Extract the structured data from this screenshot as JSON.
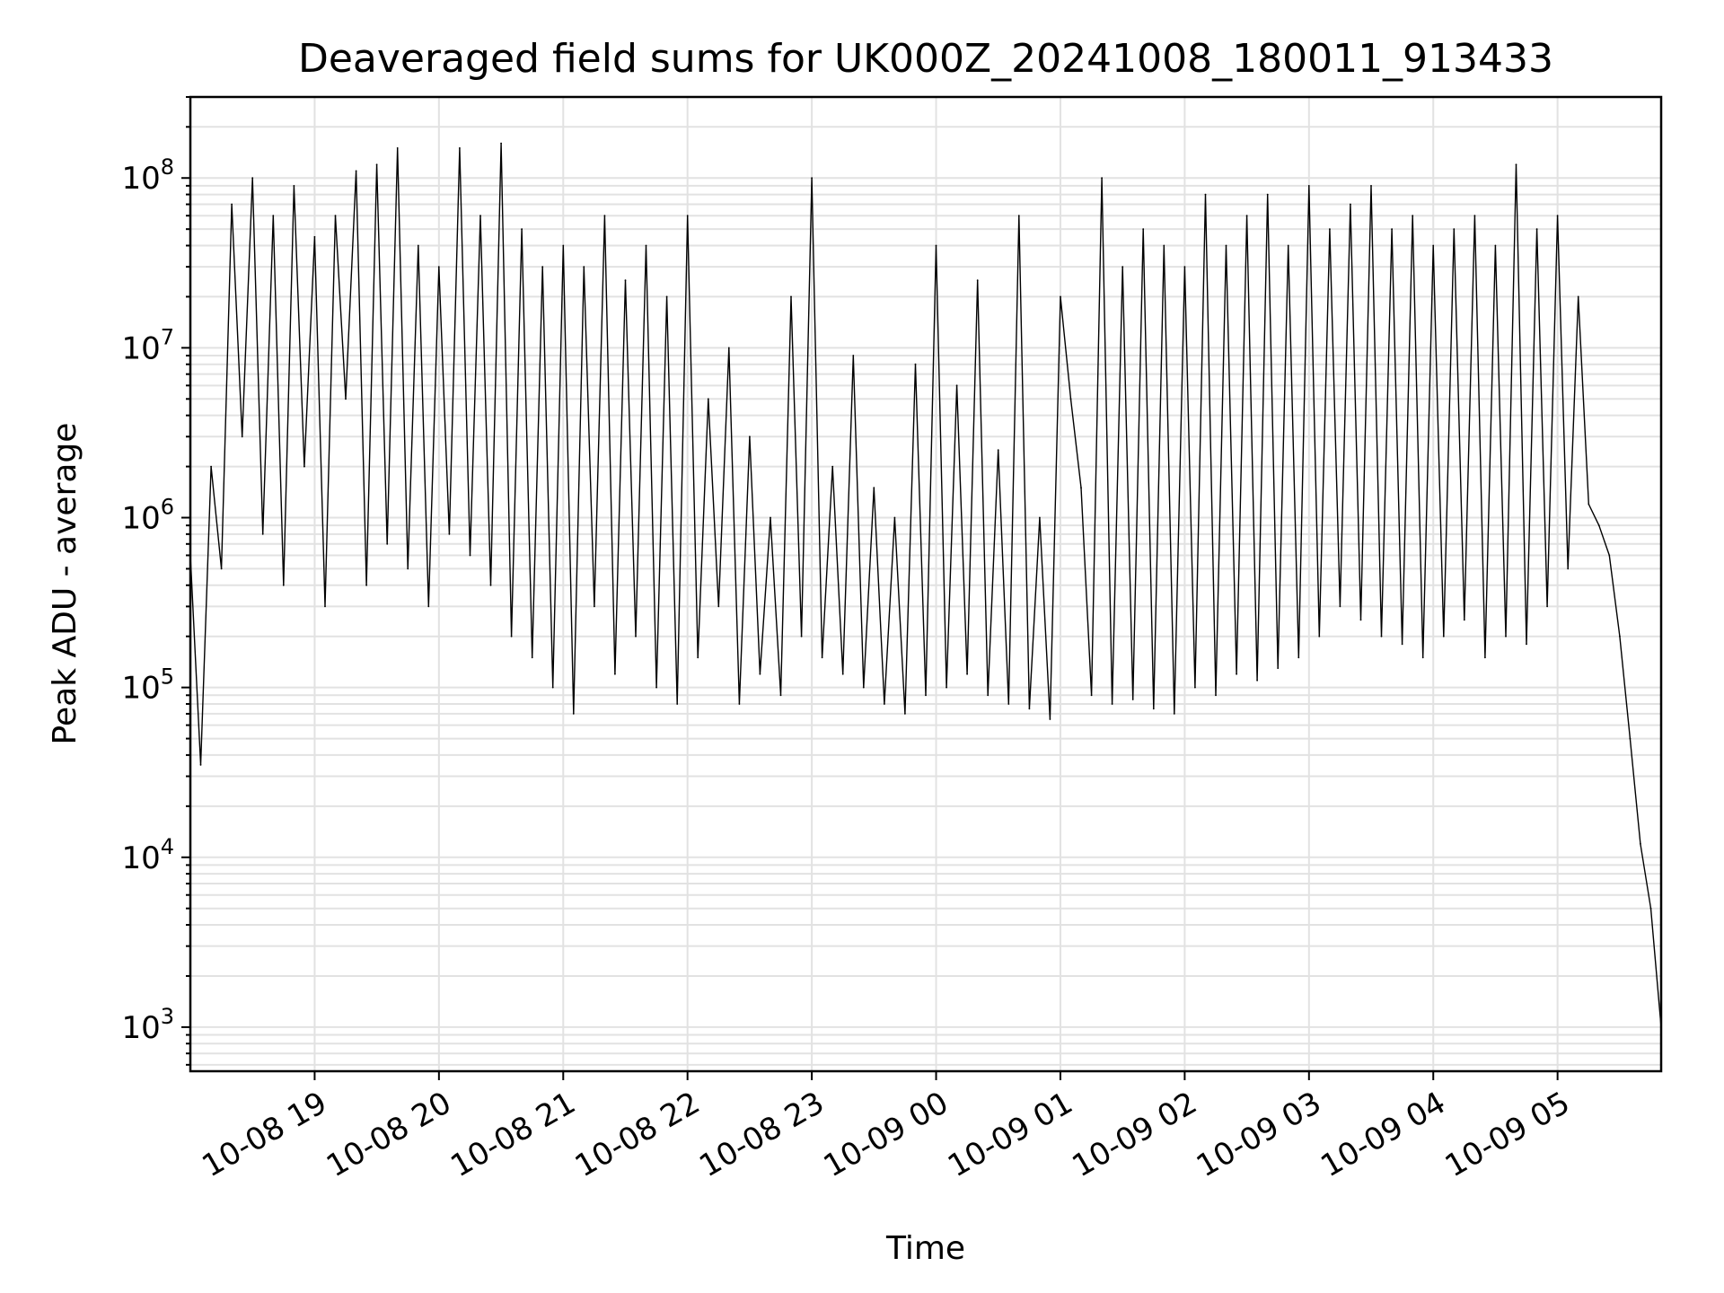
{
  "chart_data": {
    "type": "line",
    "title": "Deaveraged field sums for UK000Z_20241008_180011_913433",
    "xlabel": "Time",
    "ylabel": "Peak ADU - average",
    "yscale": "log",
    "grid": true,
    "legend": "none",
    "line_color": "#000000",
    "xlim": [
      "2024-10-08 18:00",
      "2024-10-09 05:50"
    ],
    "ylim": [
      550,
      300000000
    ],
    "x_ticks": [
      {
        "t": "2024-10-08 19:00",
        "label": "10-08 19"
      },
      {
        "t": "2024-10-08 20:00",
        "label": "10-08 20"
      },
      {
        "t": "2024-10-08 21:00",
        "label": "10-08 21"
      },
      {
        "t": "2024-10-08 22:00",
        "label": "10-08 22"
      },
      {
        "t": "2024-10-08 23:00",
        "label": "10-08 23"
      },
      {
        "t": "2024-10-09 00:00",
        "label": "10-09 00"
      },
      {
        "t": "2024-10-09 01:00",
        "label": "10-09 01"
      },
      {
        "t": "2024-10-09 02:00",
        "label": "10-09 02"
      },
      {
        "t": "2024-10-09 03:00",
        "label": "10-09 03"
      },
      {
        "t": "2024-10-09 04:00",
        "label": "10-09 04"
      },
      {
        "t": "2024-10-09 05:00",
        "label": "10-09 05"
      }
    ],
    "y_ticks": [
      {
        "value": 1000,
        "base": "10",
        "exp": "3"
      },
      {
        "value": 10000,
        "base": "10",
        "exp": "4"
      },
      {
        "value": 100000,
        "base": "10",
        "exp": "5"
      },
      {
        "value": 1000000,
        "base": "10",
        "exp": "6"
      },
      {
        "value": 10000000,
        "base": "10",
        "exp": "7"
      },
      {
        "value": 100000000,
        "base": "10",
        "exp": "8"
      }
    ],
    "series": [
      {
        "x": [
          "2024-10-08 18:00",
          "2024-10-08 18:05",
          "2024-10-08 18:10",
          "2024-10-08 18:15",
          "2024-10-08 18:20",
          "2024-10-08 18:25",
          "2024-10-08 18:30",
          "2024-10-08 18:35",
          "2024-10-08 18:40",
          "2024-10-08 18:45",
          "2024-10-08 18:50",
          "2024-10-08 18:55",
          "2024-10-08 19:00",
          "2024-10-08 19:05",
          "2024-10-08 19:10",
          "2024-10-08 19:15",
          "2024-10-08 19:20",
          "2024-10-08 19:25",
          "2024-10-08 19:30",
          "2024-10-08 19:35",
          "2024-10-08 19:40",
          "2024-10-08 19:45",
          "2024-10-08 19:50",
          "2024-10-08 19:55",
          "2024-10-08 20:00",
          "2024-10-08 20:05",
          "2024-10-08 20:10",
          "2024-10-08 20:15",
          "2024-10-08 20:20",
          "2024-10-08 20:25",
          "2024-10-08 20:30",
          "2024-10-08 20:35",
          "2024-10-08 20:40",
          "2024-10-08 20:45",
          "2024-10-08 20:50",
          "2024-10-08 20:55",
          "2024-10-08 21:00",
          "2024-10-08 21:05",
          "2024-10-08 21:10",
          "2024-10-08 21:15",
          "2024-10-08 21:20",
          "2024-10-08 21:25",
          "2024-10-08 21:30",
          "2024-10-08 21:35",
          "2024-10-08 21:40",
          "2024-10-08 21:45",
          "2024-10-08 21:50",
          "2024-10-08 21:55",
          "2024-10-08 22:00",
          "2024-10-08 22:05",
          "2024-10-08 22:10",
          "2024-10-08 22:15",
          "2024-10-08 22:20",
          "2024-10-08 22:25",
          "2024-10-08 22:30",
          "2024-10-08 22:35",
          "2024-10-08 22:40",
          "2024-10-08 22:45",
          "2024-10-08 22:50",
          "2024-10-08 22:55",
          "2024-10-08 23:00",
          "2024-10-08 23:05",
          "2024-10-08 23:10",
          "2024-10-08 23:15",
          "2024-10-08 23:20",
          "2024-10-08 23:25",
          "2024-10-08 23:30",
          "2024-10-08 23:35",
          "2024-10-08 23:40",
          "2024-10-08 23:45",
          "2024-10-08 23:50",
          "2024-10-08 23:55",
          "2024-10-09 00:00",
          "2024-10-09 00:05",
          "2024-10-09 00:10",
          "2024-10-09 00:15",
          "2024-10-09 00:20",
          "2024-10-09 00:25",
          "2024-10-09 00:30",
          "2024-10-09 00:35",
          "2024-10-09 00:40",
          "2024-10-09 00:45",
          "2024-10-09 00:50",
          "2024-10-09 00:55",
          "2024-10-09 01:00",
          "2024-10-09 01:05",
          "2024-10-09 01:10",
          "2024-10-09 01:15",
          "2024-10-09 01:20",
          "2024-10-09 01:25",
          "2024-10-09 01:30",
          "2024-10-09 01:35",
          "2024-10-09 01:40",
          "2024-10-09 01:45",
          "2024-10-09 01:50",
          "2024-10-09 01:55",
          "2024-10-09 02:00",
          "2024-10-09 02:05",
          "2024-10-09 02:10",
          "2024-10-09 02:15",
          "2024-10-09 02:20",
          "2024-10-09 02:25",
          "2024-10-09 02:30",
          "2024-10-09 02:35",
          "2024-10-09 02:40",
          "2024-10-09 02:45",
          "2024-10-09 02:50",
          "2024-10-09 02:55",
          "2024-10-09 03:00",
          "2024-10-09 03:05",
          "2024-10-09 03:10",
          "2024-10-09 03:15",
          "2024-10-09 03:20",
          "2024-10-09 03:25",
          "2024-10-09 03:30",
          "2024-10-09 03:35",
          "2024-10-09 03:40",
          "2024-10-09 03:45",
          "2024-10-09 03:50",
          "2024-10-09 03:55",
          "2024-10-09 04:00",
          "2024-10-09 04:05",
          "2024-10-09 04:10",
          "2024-10-09 04:15",
          "2024-10-09 04:20",
          "2024-10-09 04:25",
          "2024-10-09 04:30",
          "2024-10-09 04:35",
          "2024-10-09 04:40",
          "2024-10-09 04:45",
          "2024-10-09 04:50",
          "2024-10-09 04:55",
          "2024-10-09 05:00",
          "2024-10-09 05:05",
          "2024-10-09 05:10",
          "2024-10-09 05:15",
          "2024-10-09 05:20",
          "2024-10-09 05:25",
          "2024-10-09 05:30",
          "2024-10-09 05:35",
          "2024-10-09 05:40",
          "2024-10-09 05:45",
          "2024-10-09 05:50"
        ],
        "y": [
          600000,
          35000,
          2000000,
          500000,
          70000000,
          3000000,
          100000000,
          800000,
          60000000,
          400000,
          90000000,
          2000000,
          45000000,
          300000,
          60000000,
          5000000,
          110000000,
          400000,
          120000000,
          700000,
          150000000,
          500000,
          40000000,
          300000,
          30000000,
          800000,
          150000000,
          600000,
          60000000,
          400000,
          160000000,
          200000,
          50000000,
          150000,
          30000000,
          100000,
          40000000,
          70000,
          30000000,
          300000,
          60000000,
          120000,
          25000000,
          200000,
          40000000,
          100000,
          20000000,
          80000,
          60000000,
          150000,
          5000000,
          300000,
          10000000,
          80000,
          3000000,
          120000,
          1000000,
          90000,
          20000000,
          200000,
          100000000,
          150000,
          2000000,
          120000,
          9000000,
          100000,
          1500000,
          80000,
          1000000,
          70000,
          8000000,
          90000,
          40000000,
          100000,
          6000000,
          120000,
          25000000,
          90000,
          2500000,
          80000,
          60000000,
          75000,
          1000000,
          65000,
          20000000,
          5000000,
          1500000,
          90000,
          100000000,
          80000,
          30000000,
          85000,
          50000000,
          75000,
          40000000,
          70000,
          30000000,
          100000,
          80000000,
          90000,
          40000000,
          120000,
          60000000,
          110000,
          80000000,
          130000,
          40000000,
          150000,
          90000000,
          200000,
          50000000,
          300000,
          70000000,
          250000,
          90000000,
          200000,
          50000000,
          180000,
          60000000,
          150000,
          40000000,
          200000,
          50000000,
          250000,
          60000000,
          150000,
          40000000,
          200000,
          120000000,
          180000,
          50000000,
          300000,
          60000000,
          500000,
          20000000,
          1200000,
          900000,
          600000,
          200000,
          50000,
          12000,
          5000,
          1000
        ]
      }
    ]
  }
}
